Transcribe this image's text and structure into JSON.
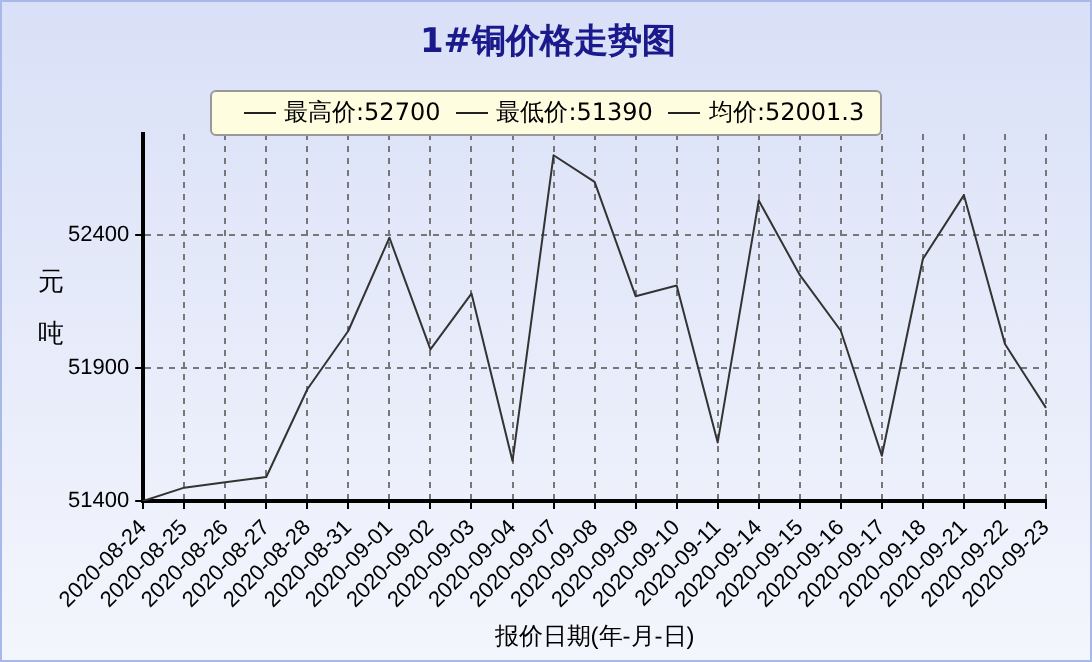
{
  "chart_data": {
    "type": "line",
    "title": "1#铜价格走势图",
    "xlabel": "报价日期(年-月-日)",
    "ylabel": "元吨",
    "annotations": [
      "最高价:52700",
      "最低价:51390",
      "均价:52001.3"
    ],
    "categories": [
      "2020-08-24",
      "2020-08-25",
      "2020-08-26",
      "2020-08-27",
      "2020-08-28",
      "2020-08-31",
      "2020-09-01",
      "2020-09-02",
      "2020-09-03",
      "2020-09-04",
      "2020-09-07",
      "2020-09-08",
      "2020-09-09",
      "2020-09-10",
      "2020-09-11",
      "2020-09-14",
      "2020-09-15",
      "2020-09-16",
      "2020-09-17",
      "2020-09-18",
      "2020-09-21",
      "2020-09-22",
      "2020-09-23"
    ],
    "series": [
      {
        "color": "#333333",
        "values": [
          51400,
          51450,
          51470,
          51490,
          51820,
          52040,
          52390,
          51970,
          52180,
          51550,
          52700,
          52600,
          52170,
          52210,
          51620,
          52530,
          52250,
          52040,
          51570,
          52310,
          52550,
          51990,
          51750
        ]
      }
    ],
    "ylim": [
      51400,
      52780
    ],
    "yticks": [
      51400,
      51900,
      52400
    ],
    "grid": true,
    "legend": false,
    "marker": "none",
    "line_style": "solid"
  }
}
